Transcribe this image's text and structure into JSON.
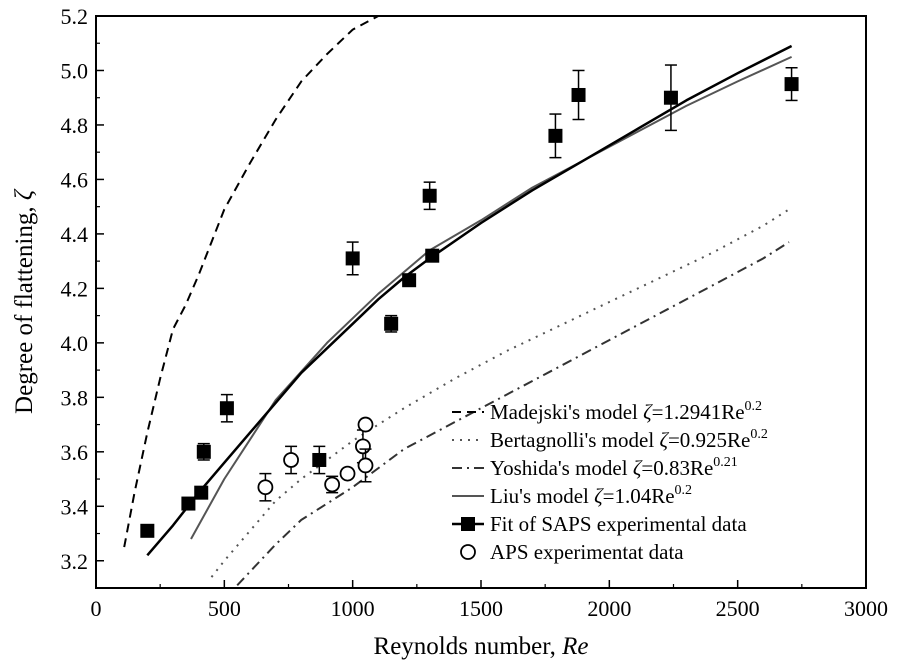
{
  "chart_data": {
    "type": "scatter",
    "xlabel": "Reynolds number, ",
    "xlabel_italic": "Re",
    "ylabel": "Degree of flattening, ",
    "ylabel_italic": "ζ",
    "xlim": [
      0,
      3000
    ],
    "ylim": [
      3.1,
      5.2
    ],
    "x_ticks": [
      0,
      500,
      1000,
      1500,
      2000,
      2500,
      3000
    ],
    "x_tick_labels": [
      "0",
      "500",
      "1000",
      "1500",
      "2000",
      "2500",
      "3000"
    ],
    "y_ticks": [
      3.2,
      3.4,
      3.6,
      3.8,
      4.0,
      4.2,
      4.4,
      4.6,
      4.8,
      5.0,
      5.2
    ],
    "y_tick_labels": [
      "3.2",
      "3.4",
      "3.6",
      "3.8",
      "4.0",
      "4.2",
      "4.4",
      "4.6",
      "4.8",
      "5.0",
      "5.2"
    ],
    "grid": false,
    "legend_position": "lower-right",
    "series": [
      {
        "name": "Madejski's model",
        "legend": {
          "prefix": "Madejski's model ",
          "var": "ζ",
          "formula": "=1.2941Re",
          "exp": "0.2"
        },
        "style": "dashed",
        "color": "#000000",
        "x": [
          110,
          150,
          200,
          250,
          300,
          350,
          400,
          450,
          500,
          600,
          700,
          800,
          900,
          1000,
          1100
        ],
        "y": [
          3.25,
          3.45,
          3.67,
          3.87,
          4.05,
          4.14,
          4.25,
          4.37,
          4.49,
          4.66,
          4.82,
          4.96,
          5.06,
          5.15,
          5.22
        ]
      },
      {
        "name": "Bertagnolli's model",
        "legend": {
          "prefix": "Bertagnolli's model ",
          "var": "ζ",
          "formula": "=0.925Re",
          "exp": "0.2"
        },
        "style": "dotted",
        "color": "#555555",
        "x": [
          450,
          500,
          600,
          700,
          800,
          900,
          1000,
          1200,
          1400,
          1600,
          1800,
          2000,
          2200,
          2400,
          2600,
          2700
        ],
        "y": [
          3.14,
          3.2,
          3.31,
          3.42,
          3.5,
          3.57,
          3.64,
          3.76,
          3.87,
          3.97,
          4.06,
          4.15,
          4.24,
          4.33,
          4.43,
          4.49
        ]
      },
      {
        "name": "Yoshida's model",
        "legend": {
          "prefix": "Yoshida's model ",
          "var": "ζ",
          "formula": "=0.83Re",
          "exp": "0.21"
        },
        "style": "dashdot",
        "color": "#333333",
        "x": [
          550,
          600,
          700,
          800,
          900,
          1000,
          1200,
          1400,
          1600,
          1800,
          2000,
          2200,
          2400,
          2600,
          2700
        ],
        "y": [
          3.11,
          3.16,
          3.26,
          3.35,
          3.41,
          3.47,
          3.61,
          3.71,
          3.81,
          3.91,
          4.01,
          4.11,
          4.21,
          4.31,
          4.37
        ]
      },
      {
        "name": "Liu's model",
        "legend": {
          "prefix": "Liu's model  ",
          "var": "ζ",
          "formula": "=1.04Re",
          "exp": "0.2"
        },
        "style": "solid-thin",
        "color": "#555555",
        "x": [
          370,
          500,
          700,
          900,
          1100,
          1300,
          1500,
          1700,
          1900,
          2100,
          2300,
          2500,
          2710
        ],
        "y": [
          3.28,
          3.5,
          3.79,
          4.0,
          4.18,
          4.34,
          4.45,
          4.57,
          4.67,
          4.77,
          4.87,
          4.96,
          5.05
        ]
      },
      {
        "name": "Fit of SAPS experimental data",
        "legend": {
          "prefix": "Fit of SAPS experimental data"
        },
        "style": "solid-square",
        "color": "#000000",
        "x": [
          200,
          300,
          400,
          500,
          600,
          700,
          800,
          900,
          1000,
          1100,
          1200,
          1300,
          1500,
          1700,
          1900,
          2100,
          2300,
          2500,
          2710
        ],
        "y": [
          3.22,
          3.33,
          3.45,
          3.56,
          3.67,
          3.78,
          3.89,
          3.98,
          4.07,
          4.16,
          4.24,
          4.31,
          4.44,
          4.56,
          4.67,
          4.78,
          4.89,
          4.99,
          5.09
        ],
        "points": [
          {
            "x": 200,
            "y": 3.31,
            "err": 0
          },
          {
            "x": 360,
            "y": 3.41,
            "err": 0
          },
          {
            "x": 410,
            "y": 3.45,
            "err": 0
          },
          {
            "x": 420,
            "y": 3.6,
            "err": 0.03
          },
          {
            "x": 510,
            "y": 3.76,
            "err": 0.05
          },
          {
            "x": 870,
            "y": 3.57,
            "err": 0.05
          },
          {
            "x": 1000,
            "y": 4.31,
            "err": 0.06
          },
          {
            "x": 1150,
            "y": 4.07,
            "err": 0.03
          },
          {
            "x": 1220,
            "y": 4.23,
            "err": 0
          },
          {
            "x": 1300,
            "y": 4.54,
            "err": 0.05
          },
          {
            "x": 1310,
            "y": 4.32,
            "err": 0
          },
          {
            "x": 1790,
            "y": 4.76,
            "err": 0.08
          },
          {
            "x": 1880,
            "y": 4.91,
            "err": 0.09
          },
          {
            "x": 2240,
            "y": 4.9,
            "err": 0.12
          },
          {
            "x": 2710,
            "y": 4.95,
            "err": 0.06
          }
        ]
      },
      {
        "name": "APS experimentat data",
        "legend": {
          "prefix": "APS experimentat data"
        },
        "style": "open-circle",
        "color": "#000000",
        "points": [
          {
            "x": 660,
            "y": 3.47,
            "err": 0.05
          },
          {
            "x": 760,
            "y": 3.57,
            "err": 0.05
          },
          {
            "x": 920,
            "y": 3.48,
            "err": 0.03
          },
          {
            "x": 980,
            "y": 3.52,
            "err": 0
          },
          {
            "x": 1040,
            "y": 3.62,
            "err": 0.06
          },
          {
            "x": 1050,
            "y": 3.7,
            "err": 0
          },
          {
            "x": 1050,
            "y": 3.55,
            "err": 0.06
          }
        ]
      }
    ]
  }
}
